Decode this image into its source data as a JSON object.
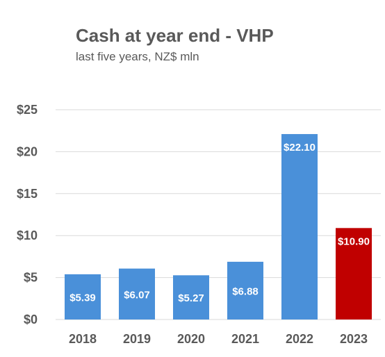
{
  "chart_data": {
    "type": "bar",
    "title": "Cash at year end - VHP",
    "subtitle": "last five years, NZ$ mln",
    "categories": [
      "2018",
      "2019",
      "2020",
      "2021",
      "2022",
      "2023"
    ],
    "values": [
      5.39,
      6.07,
      5.27,
      6.88,
      22.1,
      10.9
    ],
    "data_labels": [
      "$5.39",
      "$6.07",
      "$5.27",
      "$6.88",
      "$22.10",
      "$10.90"
    ],
    "bar_colors": [
      "#4a90d9",
      "#4a90d9",
      "#4a90d9",
      "#4a90d9",
      "#4a90d9",
      "#c00000"
    ],
    "yticks": [
      0,
      5,
      10,
      15,
      20,
      25
    ],
    "ytick_labels": [
      "$0",
      "$5",
      "$10",
      "$15",
      "$20",
      "$25"
    ],
    "ylim": [
      0,
      25
    ],
    "xlabel": "",
    "ylabel": "",
    "grid": true,
    "legend": false
  },
  "colors": {
    "text": "#595959",
    "grid": "#d9d9d9",
    "axis": "#d9d9d9"
  }
}
